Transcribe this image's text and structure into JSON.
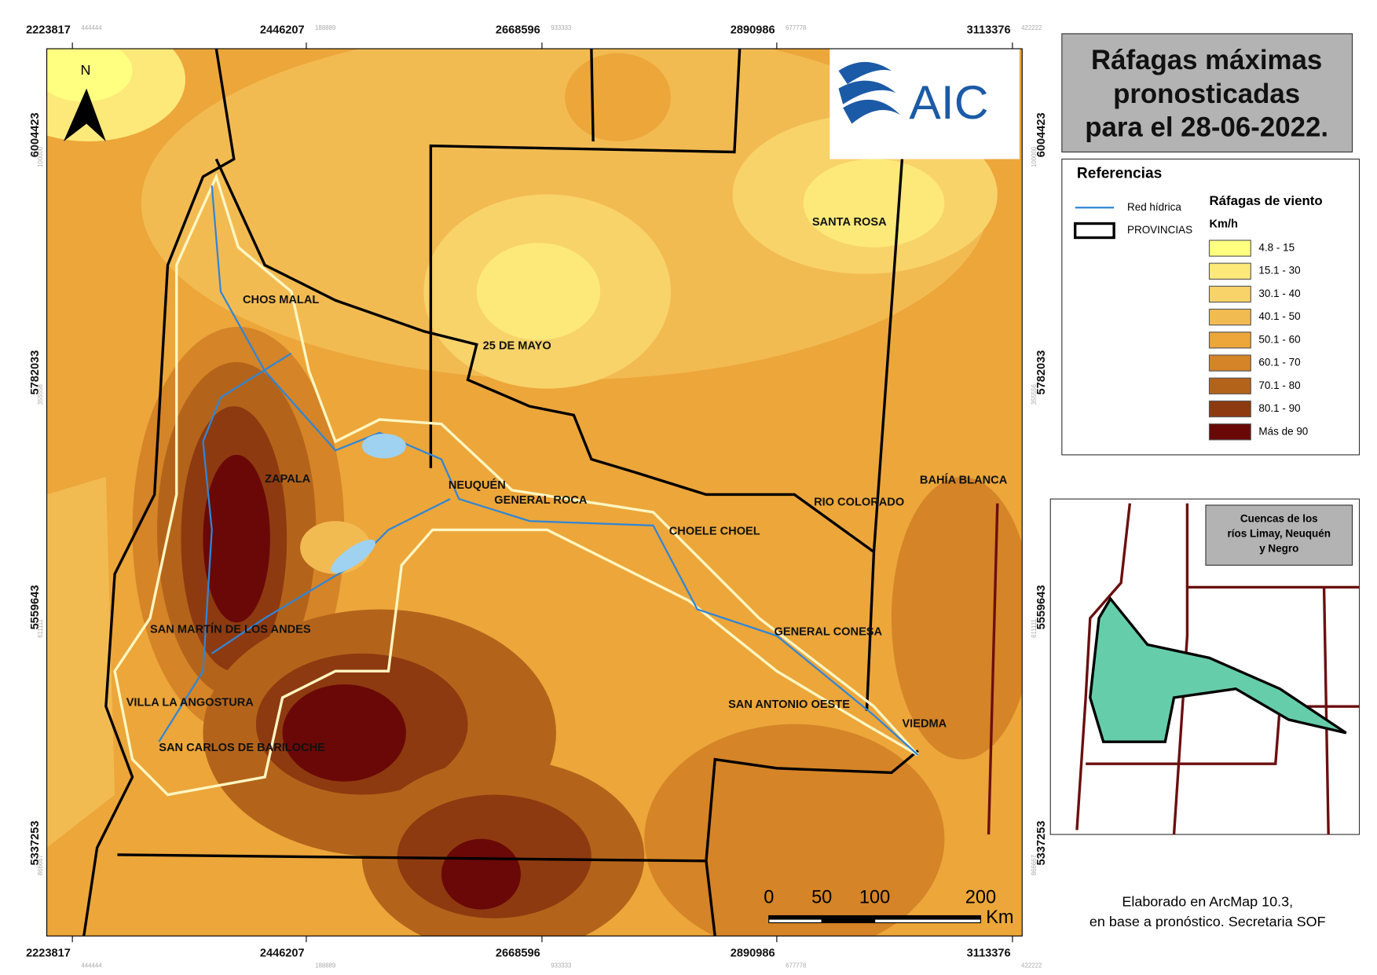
{
  "title": [
    "Ráfagas máximas",
    "pronosticadas",
    "para el 28-06-2022."
  ],
  "logo": "AIC",
  "north": "N",
  "legend": {
    "heading": "Referencias",
    "items": [
      "Red hídrica",
      "PROVINCIAS"
    ],
    "ramp_title": "Ráfagas de viento",
    "ramp_unit": "Km/h",
    "classes": [
      {
        "label": "4.8 - 15",
        "color": "#ffff80"
      },
      {
        "label": "15.1 - 30",
        "color": "#fde97a"
      },
      {
        "label": "30.1 - 40",
        "color": "#f8d36a"
      },
      {
        "label": "40.1 - 50",
        "color": "#f2bb52"
      },
      {
        "label": "50.1 - 60",
        "color": "#eca63a"
      },
      {
        "label": "60.1 - 70",
        "color": "#d58427"
      },
      {
        "label": "70.1 - 80",
        "color": "#b4641a"
      },
      {
        "label": "80.1 - 90",
        "color": "#8e3a10"
      },
      {
        "label": "Más de 90",
        "color": "#6a0808"
      }
    ]
  },
  "grid": {
    "x": [
      {
        "label": "2223817",
        "minor": "444444"
      },
      {
        "label": "2446207",
        "minor": "188889"
      },
      {
        "label": "2668596",
        "minor": "933333"
      },
      {
        "label": "2890986",
        "minor": "677778"
      },
      {
        "label": "3113376",
        "minor": "422222"
      }
    ],
    "y": [
      {
        "label": "6004423",
        "minor": "100000"
      },
      {
        "label": "5782033",
        "minor": "355556"
      },
      {
        "label": "5559643",
        "minor": "611111"
      },
      {
        "label": "5337253",
        "minor": "866667"
      }
    ]
  },
  "places": [
    "CHOS MALAL",
    "25 DE MAYO",
    "SANTA ROSA",
    "ZAPALA",
    "NEUQUÉN",
    "GENERAL ROCA",
    "CHOELE CHOEL",
    "RIO COLORADO",
    "BAHÍA BLANCA",
    "SAN MARTÍN DE LOS ANDES",
    "GENERAL CONESA",
    "VILLA LA ANGOSTURA",
    "SAN ANTONIO OESTE",
    "VIEDMA",
    "SAN CARLOS DE BARILOCHE"
  ],
  "scale_bar": {
    "ticks": [
      0,
      50,
      100,
      200
    ],
    "unit": "Km"
  },
  "inset": {
    "title": [
      "Cuencas de los",
      "ríos Limay, Neuquén",
      "y Negro"
    ]
  },
  "credit": [
    "Elaborado en ArcMap 10.3,",
    "en base a pronóstico. Secretaria SOF"
  ]
}
